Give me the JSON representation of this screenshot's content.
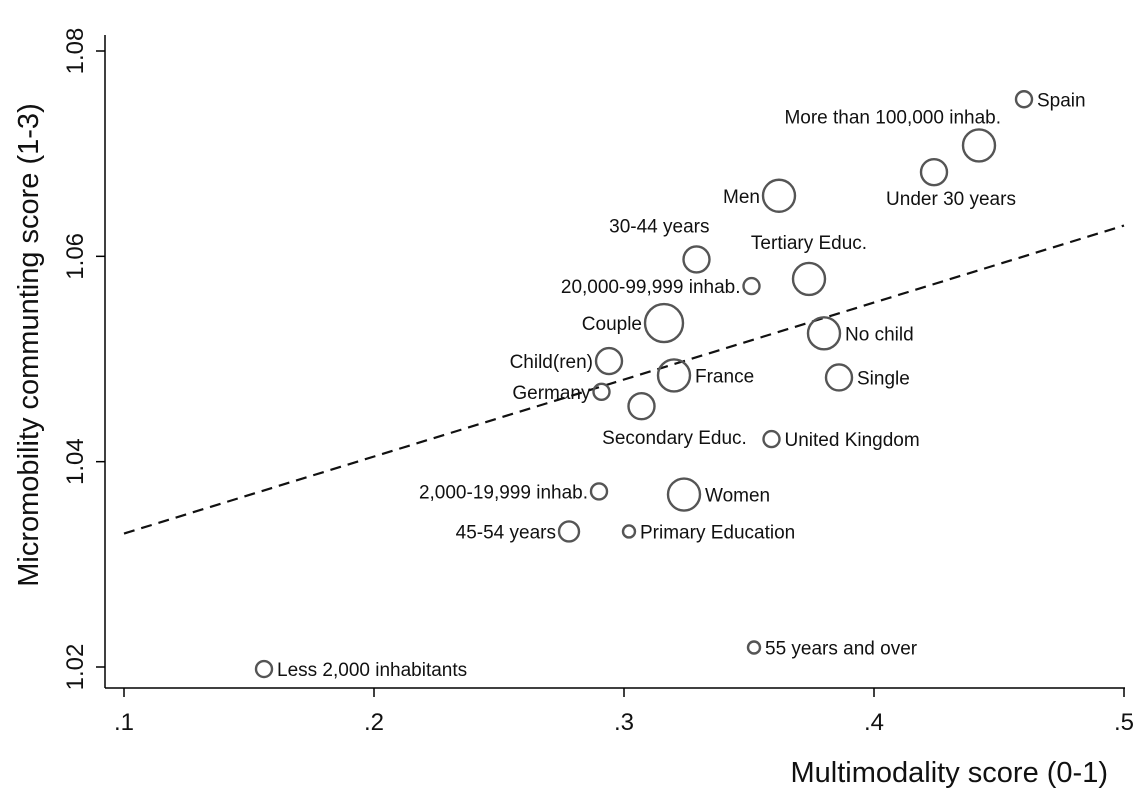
{
  "chart_data": {
    "type": "scatter",
    "xlabel": "Multimodality score (0-1)",
    "ylabel": "Micromobility communting score (1-3)",
    "xlim": [
      0.09,
      0.5
    ],
    "ylim": [
      1.0175,
      1.0815
    ],
    "x_ticks": [
      {
        "value": 0.1,
        "label": ".1"
      },
      {
        "value": 0.2,
        "label": ".2"
      },
      {
        "value": 0.3,
        "label": ".3"
      },
      {
        "value": 0.4,
        "label": ".4"
      },
      {
        "value": 0.5,
        "label": ".5"
      }
    ],
    "y_ticks": [
      {
        "value": 1.02,
        "label": "1.02"
      },
      {
        "value": 1.04,
        "label": "1.04"
      },
      {
        "value": 1.06,
        "label": "1.06"
      },
      {
        "value": 1.08,
        "label": "1.08"
      }
    ],
    "grid": false,
    "legend": "none",
    "fit_line": {
      "style": "dashed",
      "x": [
        0.1,
        0.5
      ],
      "y": [
        1.033,
        1.063
      ]
    },
    "points": [
      {
        "label": "Spain",
        "x": 0.46,
        "y": 1.0753,
        "weight": "small",
        "label_pos": "right"
      },
      {
        "label": "More than 100,000 inhab.",
        "x": 0.442,
        "y": 1.0708,
        "weight": "large",
        "label_pos": "above-left"
      },
      {
        "label": "Under 30 years",
        "x": 0.424,
        "y": 1.0682,
        "weight": "medium",
        "label_pos": "below"
      },
      {
        "label": "Men",
        "x": 0.362,
        "y": 1.0659,
        "weight": "large",
        "label_pos": "left"
      },
      {
        "label": "30-44 years",
        "x": 0.329,
        "y": 1.0597,
        "weight": "medium",
        "label_pos": "above-left"
      },
      {
        "label": "Tertiary Educ.",
        "x": 0.374,
        "y": 1.0578,
        "weight": "large",
        "label_pos": "above"
      },
      {
        "label": "20,000-99,999 inhab.",
        "x": 0.351,
        "y": 1.0571,
        "weight": "small",
        "label_pos": "left"
      },
      {
        "label": "Couple",
        "x": 0.316,
        "y": 1.0535,
        "weight": "xlarge",
        "label_pos": "left"
      },
      {
        "label": "No child",
        "x": 0.38,
        "y": 1.0525,
        "weight": "large",
        "label_pos": "right"
      },
      {
        "label": "Child(ren)",
        "x": 0.294,
        "y": 1.0498,
        "weight": "medium",
        "label_pos": "left"
      },
      {
        "label": "France",
        "x": 0.32,
        "y": 1.0484,
        "weight": "large",
        "label_pos": "right"
      },
      {
        "label": "Single",
        "x": 0.386,
        "y": 1.0482,
        "weight": "medium",
        "label_pos": "right"
      },
      {
        "label": "Germany",
        "x": 0.291,
        "y": 1.0468,
        "weight": "small",
        "label_pos": "left"
      },
      {
        "label": "Secondary Educ.",
        "x": 0.307,
        "y": 1.0454,
        "weight": "medium",
        "label_pos": "below"
      },
      {
        "label": "United Kingdom",
        "x": 0.359,
        "y": 1.0422,
        "weight": "small",
        "label_pos": "right"
      },
      {
        "label": "2,000-19,999 inhab.",
        "x": 0.29,
        "y": 1.0371,
        "weight": "small",
        "label_pos": "left"
      },
      {
        "label": "Women",
        "x": 0.324,
        "y": 1.0368,
        "weight": "large",
        "label_pos": "right"
      },
      {
        "label": "45-54 years",
        "x": 0.278,
        "y": 1.0332,
        "weight": "small-medium",
        "label_pos": "left"
      },
      {
        "label": "Primary Education",
        "x": 0.302,
        "y": 1.0332,
        "weight": "tiny",
        "label_pos": "right"
      },
      {
        "label": "55 years and over",
        "x": 0.352,
        "y": 1.0219,
        "weight": "tiny",
        "label_pos": "right"
      },
      {
        "label": "Less 2,000 inhabitants",
        "x": 0.156,
        "y": 1.0198,
        "weight": "small",
        "label_pos": "right"
      }
    ]
  }
}
